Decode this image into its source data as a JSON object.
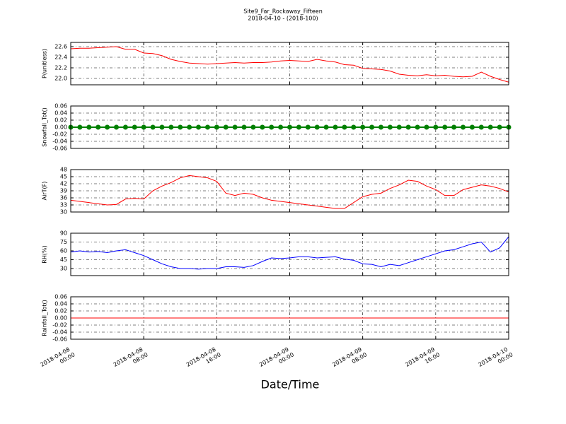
{
  "chart_data": [
    {
      "type": "line",
      "title": "Site9_Far_Rockaway_Fifteen",
      "subtitle": "2018-04-10 - (2018-100)",
      "ylabel": "P(unitless)",
      "color": "#ff0000",
      "x": [
        "2018-04-08 00:00",
        "2018-04-08 01:00",
        "2018-04-08 02:00",
        "2018-04-08 03:00",
        "2018-04-08 04:00",
        "2018-04-08 05:00",
        "2018-04-08 06:00",
        "2018-04-08 07:00",
        "2018-04-08 08:00",
        "2018-04-08 09:00",
        "2018-04-08 10:00",
        "2018-04-08 11:00",
        "2018-04-08 12:00",
        "2018-04-08 13:00",
        "2018-04-08 14:00",
        "2018-04-08 15:00",
        "2018-04-08 16:00",
        "2018-04-08 17:00",
        "2018-04-08 18:00",
        "2018-04-08 19:00",
        "2018-04-08 20:00",
        "2018-04-08 21:00",
        "2018-04-08 22:00",
        "2018-04-08 23:00",
        "2018-04-09 00:00",
        "2018-04-09 01:00",
        "2018-04-09 02:00",
        "2018-04-09 03:00",
        "2018-04-09 04:00",
        "2018-04-09 05:00",
        "2018-04-09 06:00",
        "2018-04-09 07:00",
        "2018-04-09 08:00",
        "2018-04-09 09:00",
        "2018-04-09 10:00",
        "2018-04-09 11:00",
        "2018-04-09 12:00",
        "2018-04-09 13:00",
        "2018-04-09 14:00",
        "2018-04-09 15:00",
        "2018-04-09 16:00",
        "2018-04-09 17:00",
        "2018-04-09 18:00",
        "2018-04-09 19:00",
        "2018-04-09 20:00",
        "2018-04-09 21:00",
        "2018-04-09 22:00",
        "2018-04-09 23:00",
        "2018-04-10 00:00"
      ],
      "values": [
        22.56,
        22.57,
        22.57,
        22.58,
        22.59,
        22.6,
        22.55,
        22.55,
        22.48,
        22.47,
        22.43,
        22.36,
        22.32,
        22.29,
        22.28,
        22.27,
        22.28,
        22.29,
        22.3,
        22.29,
        22.3,
        22.3,
        22.31,
        22.33,
        22.34,
        22.33,
        22.32,
        22.36,
        22.33,
        22.31,
        22.26,
        22.25,
        22.19,
        22.18,
        22.17,
        22.14,
        22.08,
        22.06,
        22.05,
        22.07,
        22.05,
        22.06,
        22.04,
        22.03,
        22.04,
        22.12,
        22.04,
        21.98,
        21.93
      ],
      "xlim": [
        "2018-04-08 00:00",
        "2018-04-10 00:00"
      ],
      "ylim": [
        21.88,
        22.68
      ],
      "yticks": [
        {
          "value": 22,
          "label": "22.0"
        },
        22.2,
        22.4,
        22.6
      ],
      "grid": true
    },
    {
      "type": "line",
      "ylabel": "Snowfall_Tot()",
      "color": "#008000",
      "markers": true,
      "x": [
        "2018-04-08 00:00",
        "2018-04-08 01:00",
        "2018-04-08 02:00",
        "2018-04-08 03:00",
        "2018-04-08 04:00",
        "2018-04-08 05:00",
        "2018-04-08 06:00",
        "2018-04-08 07:00",
        "2018-04-08 08:00",
        "2018-04-08 09:00",
        "2018-04-08 10:00",
        "2018-04-08 11:00",
        "2018-04-08 12:00",
        "2018-04-08 13:00",
        "2018-04-08 14:00",
        "2018-04-08 15:00",
        "2018-04-08 16:00",
        "2018-04-08 17:00",
        "2018-04-08 18:00",
        "2018-04-08 19:00",
        "2018-04-08 20:00",
        "2018-04-08 21:00",
        "2018-04-08 22:00",
        "2018-04-08 23:00",
        "2018-04-09 00:00",
        "2018-04-09 01:00",
        "2018-04-09 02:00",
        "2018-04-09 03:00",
        "2018-04-09 04:00",
        "2018-04-09 05:00",
        "2018-04-09 06:00",
        "2018-04-09 07:00",
        "2018-04-09 08:00",
        "2018-04-09 09:00",
        "2018-04-09 10:00",
        "2018-04-09 11:00",
        "2018-04-09 12:00",
        "2018-04-09 13:00",
        "2018-04-09 14:00",
        "2018-04-09 15:00",
        "2018-04-09 16:00",
        "2018-04-09 17:00",
        "2018-04-09 18:00",
        "2018-04-09 19:00",
        "2018-04-09 20:00",
        "2018-04-09 21:00",
        "2018-04-09 22:00",
        "2018-04-09 23:00",
        "2018-04-10 00:00"
      ],
      "values": [
        0,
        0,
        0,
        0,
        0,
        0,
        0,
        0,
        0,
        0,
        0,
        0,
        0,
        0,
        0,
        0,
        0,
        0,
        0,
        0,
        0,
        0,
        0,
        0,
        0,
        0,
        0,
        0,
        0,
        0,
        0,
        0,
        0,
        0,
        0,
        0,
        0,
        0,
        0,
        0,
        0,
        0,
        0,
        0,
        0,
        0,
        0,
        0,
        0
      ],
      "xlim": [
        "2018-04-08 00:00",
        "2018-04-10 00:00"
      ],
      "ylim": [
        -0.06,
        0.06
      ],
      "yticks": [
        -0.06,
        -0.04,
        -0.02,
        {
          "value": 0,
          "label": "0.00"
        },
        0.02,
        0.04,
        0.06
      ],
      "grid": true
    },
    {
      "type": "line",
      "ylabel": "AirT(F)",
      "color": "#ff0000",
      "x": [
        "2018-04-08 00:00",
        "2018-04-08 01:00",
        "2018-04-08 02:00",
        "2018-04-08 03:00",
        "2018-04-08 04:00",
        "2018-04-08 05:00",
        "2018-04-08 06:00",
        "2018-04-08 07:00",
        "2018-04-08 08:00",
        "2018-04-08 09:00",
        "2018-04-08 10:00",
        "2018-04-08 11:00",
        "2018-04-08 12:00",
        "2018-04-08 13:00",
        "2018-04-08 14:00",
        "2018-04-08 15:00",
        "2018-04-08 16:00",
        "2018-04-08 17:00",
        "2018-04-08 18:00",
        "2018-04-08 19:00",
        "2018-04-08 20:00",
        "2018-04-08 21:00",
        "2018-04-08 22:00",
        "2018-04-08 23:00",
        "2018-04-09 00:00",
        "2018-04-09 01:00",
        "2018-04-09 02:00",
        "2018-04-09 03:00",
        "2018-04-09 04:00",
        "2018-04-09 05:00",
        "2018-04-09 06:00",
        "2018-04-09 07:00",
        "2018-04-09 08:00",
        "2018-04-09 09:00",
        "2018-04-09 10:00",
        "2018-04-09 11:00",
        "2018-04-09 12:00",
        "2018-04-09 13:00",
        "2018-04-09 14:00",
        "2018-04-09 15:00",
        "2018-04-09 16:00",
        "2018-04-09 17:00",
        "2018-04-09 18:00",
        "2018-04-09 19:00",
        "2018-04-09 20:00",
        "2018-04-09 21:00",
        "2018-04-09 22:00",
        "2018-04-09 23:00",
        "2018-04-10 00:00"
      ],
      "values": [
        35,
        34.5,
        34,
        33.5,
        33,
        33.2,
        35.5,
        35.8,
        35.5,
        39,
        41,
        42.5,
        44.5,
        45.5,
        45,
        44.5,
        43,
        38,
        37,
        38,
        37.5,
        36,
        35,
        34.5,
        34,
        33.5,
        33,
        32.5,
        32,
        31.5,
        31.5,
        34,
        36.5,
        37.5,
        38,
        40,
        41.5,
        43.5,
        43,
        41,
        39.5,
        37,
        37,
        39.5,
        40.5,
        41.5,
        41,
        40,
        38.5
      ],
      "xlim": [
        "2018-04-08 00:00",
        "2018-04-10 00:00"
      ],
      "ylim": [
        30,
        48
      ],
      "yticks": [
        30,
        33,
        36,
        39,
        42,
        45,
        48
      ],
      "grid": true
    },
    {
      "type": "line",
      "ylabel": "RH(%)",
      "color": "#0000ff",
      "x": [
        "2018-04-08 00:00",
        "2018-04-08 01:00",
        "2018-04-08 02:00",
        "2018-04-08 03:00",
        "2018-04-08 04:00",
        "2018-04-08 05:00",
        "2018-04-08 06:00",
        "2018-04-08 07:00",
        "2018-04-08 08:00",
        "2018-04-08 09:00",
        "2018-04-08 10:00",
        "2018-04-08 11:00",
        "2018-04-08 12:00",
        "2018-04-08 13:00",
        "2018-04-08 14:00",
        "2018-04-08 15:00",
        "2018-04-08 16:00",
        "2018-04-08 17:00",
        "2018-04-08 18:00",
        "2018-04-08 19:00",
        "2018-04-08 20:00",
        "2018-04-08 21:00",
        "2018-04-08 22:00",
        "2018-04-08 23:00",
        "2018-04-09 00:00",
        "2018-04-09 01:00",
        "2018-04-09 02:00",
        "2018-04-09 03:00",
        "2018-04-09 04:00",
        "2018-04-09 05:00",
        "2018-04-09 06:00",
        "2018-04-09 07:00",
        "2018-04-09 08:00",
        "2018-04-09 09:00",
        "2018-04-09 10:00",
        "2018-04-09 11:00",
        "2018-04-09 12:00",
        "2018-04-09 13:00",
        "2018-04-09 14:00",
        "2018-04-09 15:00",
        "2018-04-09 16:00",
        "2018-04-09 17:00",
        "2018-04-09 18:00",
        "2018-04-09 19:00",
        "2018-04-09 20:00",
        "2018-04-09 21:00",
        "2018-04-09 22:00",
        "2018-04-09 23:00",
        "2018-04-10 00:00"
      ],
      "values": [
        58,
        60,
        58,
        59,
        57,
        60,
        62,
        57,
        52,
        45,
        38,
        33,
        30,
        30,
        29,
        30,
        30,
        33,
        33,
        32,
        35,
        42,
        48,
        47,
        48,
        50,
        50,
        48,
        49,
        50,
        46,
        44,
        38,
        37,
        33,
        37,
        35,
        40,
        45,
        50,
        55,
        60,
        62,
        67,
        72,
        75,
        58,
        65,
        84
      ],
      "xlim": [
        "2018-04-08 00:00",
        "2018-04-10 00:00"
      ],
      "ylim": [
        18,
        90
      ],
      "yticks": [
        30,
        45,
        60,
        75,
        90
      ],
      "grid": true
    },
    {
      "type": "line",
      "ylabel": "Rainfall_Tot()",
      "xlabel": "Date/Time",
      "color": "#ff0000",
      "x": [
        "2018-04-08 00:00",
        "2018-04-08 01:00",
        "2018-04-08 02:00",
        "2018-04-08 03:00",
        "2018-04-08 04:00",
        "2018-04-08 05:00",
        "2018-04-08 06:00",
        "2018-04-08 07:00",
        "2018-04-08 08:00",
        "2018-04-08 09:00",
        "2018-04-08 10:00",
        "2018-04-08 11:00",
        "2018-04-08 12:00",
        "2018-04-08 13:00",
        "2018-04-08 14:00",
        "2018-04-08 15:00",
        "2018-04-08 16:00",
        "2018-04-08 17:00",
        "2018-04-08 18:00",
        "2018-04-08 19:00",
        "2018-04-08 20:00",
        "2018-04-08 21:00",
        "2018-04-08 22:00",
        "2018-04-08 23:00",
        "2018-04-09 00:00",
        "2018-04-09 01:00",
        "2018-04-09 02:00",
        "2018-04-09 03:00",
        "2018-04-09 04:00",
        "2018-04-09 05:00",
        "2018-04-09 06:00",
        "2018-04-09 07:00",
        "2018-04-09 08:00",
        "2018-04-09 09:00",
        "2018-04-09 10:00",
        "2018-04-09 11:00",
        "2018-04-09 12:00",
        "2018-04-09 13:00",
        "2018-04-09 14:00",
        "2018-04-09 15:00",
        "2018-04-09 16:00",
        "2018-04-09 17:00",
        "2018-04-09 18:00",
        "2018-04-09 19:00",
        "2018-04-09 20:00",
        "2018-04-09 21:00",
        "2018-04-09 22:00",
        "2018-04-09 23:00",
        "2018-04-10 00:00"
      ],
      "values": [
        0,
        0,
        0,
        0,
        0,
        0,
        0,
        0,
        0,
        0,
        0,
        0,
        0,
        0,
        0,
        0,
        0,
        0,
        0,
        0,
        0,
        0,
        0,
        0,
        0,
        0,
        0,
        0,
        0,
        0,
        0,
        0,
        0,
        0,
        0,
        0,
        0,
        0,
        0,
        0,
        0,
        0,
        0,
        0,
        0,
        0,
        0,
        0,
        0
      ],
      "xlim": [
        "2018-04-08 00:00",
        "2018-04-10 00:00"
      ],
      "ylim": [
        -0.06,
        0.06
      ],
      "yticks": [
        -0.06,
        -0.04,
        -0.02,
        {
          "value": 0,
          "label": "0.00"
        },
        0.02,
        0.04,
        0.06
      ],
      "xticks": [
        "2018-04-08 00:00",
        "2018-04-08 08:00",
        "2018-04-08 16:00",
        "2018-04-09 00:00",
        "2018-04-09 08:00",
        "2018-04-09 16:00",
        "2018-04-10 00:00"
      ],
      "grid": true
    }
  ]
}
